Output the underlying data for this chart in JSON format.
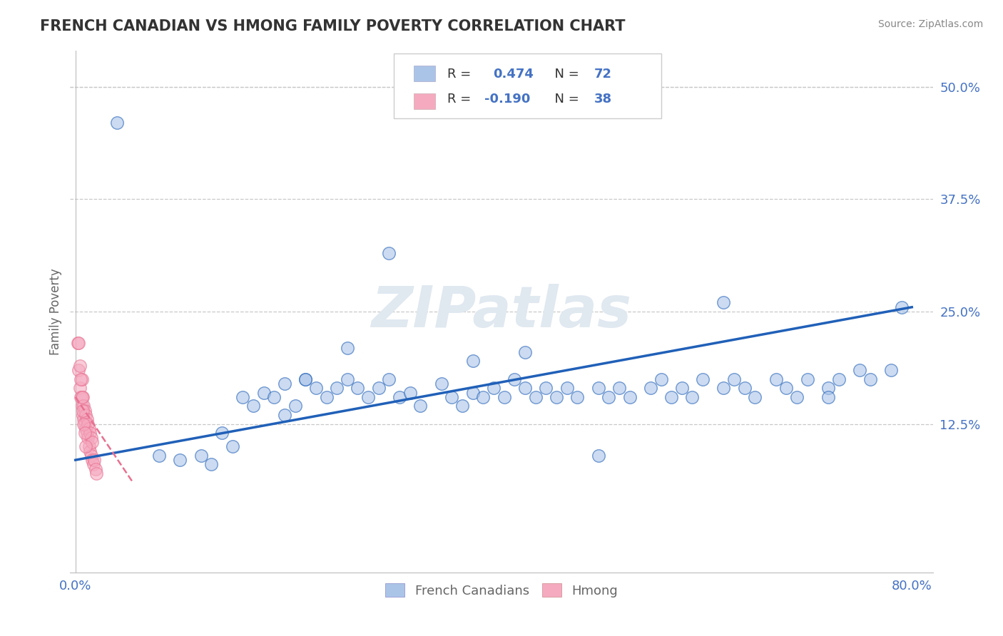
{
  "title": "FRENCH CANADIAN VS HMONG FAMILY POVERTY CORRELATION CHART",
  "source": "Source: ZipAtlas.com",
  "ylabel": "Family Poverty",
  "xlim": [
    -0.005,
    0.82
  ],
  "ylim": [
    -0.04,
    0.54
  ],
  "xticks": [
    0.0,
    0.8
  ],
  "xticklabels": [
    "0.0%",
    "80.0%"
  ],
  "ytick_vals": [
    0.125,
    0.25,
    0.375,
    0.5
  ],
  "ytick_labels": [
    "12.5%",
    "25.0%",
    "37.5%",
    "50.0%"
  ],
  "french_R": 0.474,
  "french_N": 72,
  "hmong_R": -0.19,
  "hmong_N": 38,
  "french_color": "#aac4e8",
  "hmong_color": "#f5aac0",
  "french_line_color": "#2060b8",
  "hmong_line_color": "#e87090",
  "label_color": "#4472c4",
  "background_color": "#ffffff",
  "grid_color": "#c8c8c8",
  "watermark_color": "#e0e8f0",
  "french_x": [
    0.04,
    0.08,
    0.1,
    0.12,
    0.13,
    0.14,
    0.15,
    0.16,
    0.17,
    0.18,
    0.19,
    0.2,
    0.21,
    0.22,
    0.23,
    0.24,
    0.25,
    0.26,
    0.27,
    0.28,
    0.29,
    0.3,
    0.31,
    0.32,
    0.33,
    0.35,
    0.36,
    0.37,
    0.38,
    0.39,
    0.4,
    0.41,
    0.42,
    0.43,
    0.44,
    0.45,
    0.46,
    0.47,
    0.48,
    0.5,
    0.51,
    0.52,
    0.53,
    0.55,
    0.56,
    0.57,
    0.58,
    0.59,
    0.6,
    0.62,
    0.63,
    0.64,
    0.65,
    0.67,
    0.68,
    0.69,
    0.7,
    0.72,
    0.73,
    0.75,
    0.76,
    0.78,
    0.79,
    0.3,
    0.43,
    0.5,
    0.62,
    0.72,
    0.38,
    0.2,
    0.22,
    0.26
  ],
  "french_y": [
    0.46,
    0.09,
    0.085,
    0.09,
    0.08,
    0.115,
    0.1,
    0.155,
    0.145,
    0.16,
    0.155,
    0.17,
    0.145,
    0.175,
    0.165,
    0.155,
    0.165,
    0.175,
    0.165,
    0.155,
    0.165,
    0.175,
    0.155,
    0.16,
    0.145,
    0.17,
    0.155,
    0.145,
    0.16,
    0.155,
    0.165,
    0.155,
    0.175,
    0.165,
    0.155,
    0.165,
    0.155,
    0.165,
    0.155,
    0.165,
    0.155,
    0.165,
    0.155,
    0.165,
    0.175,
    0.155,
    0.165,
    0.155,
    0.175,
    0.165,
    0.175,
    0.165,
    0.155,
    0.175,
    0.165,
    0.155,
    0.175,
    0.165,
    0.175,
    0.185,
    0.175,
    0.185,
    0.255,
    0.315,
    0.205,
    0.09,
    0.26,
    0.155,
    0.195,
    0.135,
    0.175,
    0.21
  ],
  "hmong_x": [
    0.002,
    0.003,
    0.004,
    0.005,
    0.006,
    0.006,
    0.007,
    0.007,
    0.008,
    0.008,
    0.009,
    0.009,
    0.01,
    0.01,
    0.011,
    0.011,
    0.012,
    0.012,
    0.013,
    0.013,
    0.014,
    0.014,
    0.015,
    0.015,
    0.016,
    0.016,
    0.017,
    0.018,
    0.019,
    0.02,
    0.003,
    0.004,
    0.005,
    0.006,
    0.007,
    0.008,
    0.009,
    0.01
  ],
  "hmong_y": [
    0.215,
    0.185,
    0.165,
    0.155,
    0.145,
    0.175,
    0.135,
    0.155,
    0.13,
    0.145,
    0.125,
    0.14,
    0.12,
    0.135,
    0.115,
    0.13,
    0.11,
    0.125,
    0.1,
    0.12,
    0.095,
    0.115,
    0.09,
    0.11,
    0.085,
    0.105,
    0.08,
    0.085,
    0.075,
    0.07,
    0.215,
    0.19,
    0.175,
    0.155,
    0.14,
    0.125,
    0.115,
    0.1
  ],
  "french_line_x": [
    0.0,
    0.8
  ],
  "french_line_y": [
    0.085,
    0.255
  ],
  "hmong_line_x": [
    0.0,
    0.055
  ],
  "hmong_line_y": [
    0.155,
    0.06
  ]
}
